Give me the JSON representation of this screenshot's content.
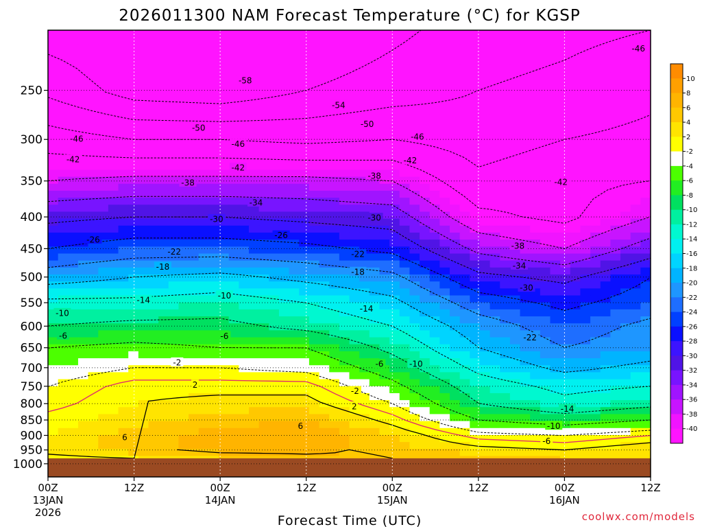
{
  "chart_data": {
    "type": "heatmap",
    "title": "2026011300 NAM Forecast Temperature (°C) for KGSP",
    "xlabel": "Forecast Time (UTC)",
    "ylabel": "",
    "credit": "coolwx.com/models",
    "y_scale": "log",
    "y_inverted": true,
    "y_unit": "hPa",
    "ylim": [
      1050,
      200
    ],
    "y_ticks": [
      250,
      300,
      350,
      400,
      450,
      500,
      550,
      600,
      650,
      700,
      750,
      800,
      850,
      900,
      950,
      1000
    ],
    "x_unit": "forecast hour",
    "xlim": [
      0,
      84
    ],
    "x_ticks": [
      {
        "hour": 0,
        "label": "00Z",
        "date": "13JAN",
        "year": "2026"
      },
      {
        "hour": 12,
        "label": "12Z",
        "date": "",
        "year": ""
      },
      {
        "hour": 24,
        "label": "00Z",
        "date": "14JAN",
        "year": ""
      },
      {
        "hour": 36,
        "label": "12Z",
        "date": "",
        "year": ""
      },
      {
        "hour": 48,
        "label": "00Z",
        "date": "15JAN",
        "year": ""
      },
      {
        "hour": 60,
        "label": "12Z",
        "date": "",
        "year": ""
      },
      {
        "hour": 72,
        "label": "00Z",
        "date": "16JAN",
        "year": ""
      },
      {
        "hour": 84,
        "label": "12Z",
        "date": "",
        "year": ""
      }
    ],
    "grid": true,
    "ground_level_hpa": 980,
    "ground_color": "#9a4a22",
    "colorbar": {
      "position": "right",
      "levels": [
        10,
        8,
        6,
        4,
        2,
        -2,
        -4,
        -6,
        -8,
        -10,
        -12,
        -14,
        -16,
        -18,
        -20,
        -22,
        -24,
        -26,
        -28,
        -30,
        -32,
        -34,
        -36,
        -38,
        -40
      ],
      "colors": [
        "#ff8c00",
        "#ffa000",
        "#ffb400",
        "#ffc800",
        "#ffe400",
        "#ffff00",
        "#ffffff",
        "#4cff00",
        "#22ee22",
        "#00e060",
        "#00f0a0",
        "#00f8d0",
        "#00f0f0",
        "#00d4ff",
        "#00b4ff",
        "#1e96ff",
        "#1e6eff",
        "#0040ff",
        "#0a10ff",
        "#3c14ff",
        "#5014e6",
        "#7814ff",
        "#a014ff",
        "#c814ff",
        "#f014ff",
        "#ff14ff"
      ]
    },
    "times": [
      0,
      12,
      24,
      36,
      48,
      60,
      72,
      84
    ],
    "levels_hpa": [
      980,
      950,
      900,
      850,
      800,
      750,
      700,
      650,
      600,
      550,
      500,
      450,
      400,
      350,
      300,
      250,
      200
    ],
    "temperature_profiles": [
      [
        1,
        2,
        4,
        5,
        6,
        5,
        4,
        3
      ],
      [
        3,
        5,
        7,
        7,
        5,
        3,
        2,
        4
      ],
      [
        2,
        5,
        7,
        8,
        4,
        -1,
        -2,
        0
      ],
      [
        1,
        3,
        5,
        6,
        1,
        -6,
        -8,
        -6
      ],
      [
        -1,
        2,
        3,
        3,
        -2,
        -10,
        -13,
        -11
      ],
      [
        -2,
        1,
        1,
        1,
        -5,
        -12,
        -15,
        -14
      ],
      [
        -4,
        -2,
        -2,
        -3,
        -8,
        -15,
        -19,
        -17
      ],
      [
        -6,
        -5,
        -6,
        -6,
        -11,
        -18,
        -22,
        -20
      ],
      [
        -10,
        -9,
        -9,
        -11,
        -14,
        -20,
        -24,
        -21
      ],
      [
        -13,
        -13,
        -12,
        -14,
        -17,
        -24,
        -27,
        -24
      ],
      [
        -20,
        -18,
        -17,
        -19,
        -21,
        -29,
        -31,
        -26
      ],
      [
        -26,
        -24,
        -24,
        -25,
        -27,
        -35,
        -38,
        -32
      ],
      [
        -31,
        -30,
        -30,
        -31,
        -32,
        -41,
        -43,
        -38
      ],
      [
        -38,
        -37,
        -37,
        -37,
        -38,
        -45,
        -43,
        -42
      ],
      [
        -44,
        -46,
        -46,
        -47,
        -46,
        -48,
        -46,
        -45
      ],
      [
        -51,
        -56,
        -57,
        -54,
        -52,
        -50,
        -49,
        -47
      ],
      [
        -56,
        -57,
        -58,
        -58,
        -55,
        -52,
        -51,
        -50
      ]
    ],
    "contour_labels": [
      {
        "text": "-46",
        "hour": 82.3,
        "hpa": 214
      },
      {
        "text": "-58",
        "hour": 27.5,
        "hpa": 241
      },
      {
        "text": "-54",
        "hour": 40.5,
        "hpa": 264
      },
      {
        "text": "-50",
        "hour": 21,
        "hpa": 287
      },
      {
        "text": "-50",
        "hour": 44.5,
        "hpa": 283
      },
      {
        "text": "-46",
        "hour": 4,
        "hpa": 299
      },
      {
        "text": "-46",
        "hour": 26.5,
        "hpa": 305
      },
      {
        "text": "-46",
        "hour": 51.5,
        "hpa": 297
      },
      {
        "text": "-42",
        "hour": 3.5,
        "hpa": 323
      },
      {
        "text": "-42",
        "hour": 26.5,
        "hpa": 333
      },
      {
        "text": "-42",
        "hour": 50.5,
        "hpa": 324
      },
      {
        "text": "-42",
        "hour": 71.5,
        "hpa": 351
      },
      {
        "text": "-38",
        "hour": 19.5,
        "hpa": 352
      },
      {
        "text": "-38",
        "hour": 45.5,
        "hpa": 343
      },
      {
        "text": "-34",
        "hour": 29,
        "hpa": 379
      },
      {
        "text": "-30",
        "hour": 23.5,
        "hpa": 403
      },
      {
        "text": "-30",
        "hour": 45.5,
        "hpa": 401
      },
      {
        "text": "-26",
        "hour": 6.3,
        "hpa": 435
      },
      {
        "text": "-26",
        "hour": 32.5,
        "hpa": 428
      },
      {
        "text": "-38",
        "hour": 65.5,
        "hpa": 445
      },
      {
        "text": "-22",
        "hour": 17.6,
        "hpa": 455
      },
      {
        "text": "-22",
        "hour": 43.2,
        "hpa": 459
      },
      {
        "text": "-34",
        "hour": 65.7,
        "hpa": 479
      },
      {
        "text": "-18",
        "hour": 16,
        "hpa": 481
      },
      {
        "text": "-18",
        "hour": 43.2,
        "hpa": 490
      },
      {
        "text": "-30",
        "hour": 66.7,
        "hpa": 520
      },
      {
        "text": "-14",
        "hour": 13.3,
        "hpa": 544
      },
      {
        "text": "-10",
        "hour": 24.6,
        "hpa": 535
      },
      {
        "text": "-14",
        "hour": 44.4,
        "hpa": 562
      },
      {
        "text": "-10",
        "hour": 2,
        "hpa": 571
      },
      {
        "text": "-22",
        "hour": 67.2,
        "hpa": 625
      },
      {
        "text": "-6",
        "hour": 2.1,
        "hpa": 621
      },
      {
        "text": "-6",
        "hour": 24.6,
        "hpa": 622
      },
      {
        "text": "-2",
        "hour": 18,
        "hpa": 686
      },
      {
        "text": "-6",
        "hour": 46.2,
        "hpa": 690
      },
      {
        "text": "-10",
        "hour": 51.3,
        "hpa": 690
      },
      {
        "text": "2",
        "hour": 20.5,
        "hpa": 745
      },
      {
        "text": "-2",
        "hour": 42.8,
        "hpa": 763
      },
      {
        "text": "2",
        "hour": 42.7,
        "hpa": 808
      },
      {
        "text": "-14",
        "hour": 72.4,
        "hpa": 815
      },
      {
        "text": "-10",
        "hour": 70.5,
        "hpa": 868
      },
      {
        "text": "6",
        "hour": 35.2,
        "hpa": 869
      },
      {
        "text": "-6",
        "hour": 69.5,
        "hpa": 918
      },
      {
        "text": "6",
        "hour": 10.7,
        "hpa": 906
      }
    ]
  }
}
